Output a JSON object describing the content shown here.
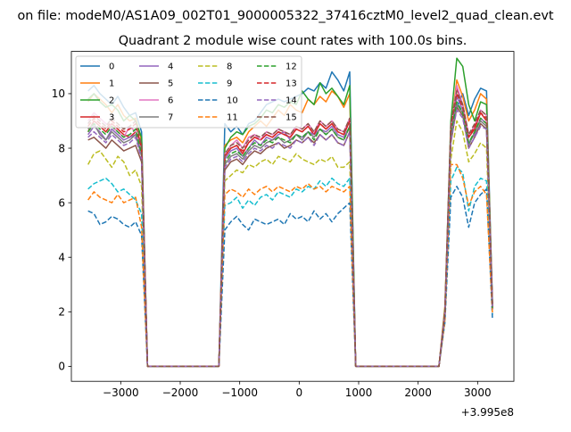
{
  "suptitle": "on file: modeM0/AS1A09_002T01_9000005322_37416cztM0_level2_quad_clean.evt",
  "chart_data": {
    "type": "line",
    "title": "Quadrant 2 module wise count rates with 100.0s bins.",
    "xlabel": "",
    "ylabel": "",
    "x_offset_label": "+3.995e8",
    "xlim": [
      -3830,
      3610
    ],
    "ylim": [
      -0.55,
      11.55
    ],
    "xticks": [
      -3000,
      -2000,
      -1000,
      0,
      1000,
      2000,
      3000
    ],
    "xtick_labels": [
      "−3000",
      "−2000",
      "−1000",
      "0",
      "1000",
      "2000",
      "3000"
    ],
    "yticks": [
      0,
      2,
      4,
      6,
      8,
      10
    ],
    "ytick_labels": [
      "0",
      "2",
      "4",
      "6",
      "8",
      "10"
    ],
    "grid": false,
    "legend_position": "top-left",
    "legend_columns": 4,
    "x": [
      -3550,
      -3450,
      -3350,
      -3250,
      -3150,
      -3050,
      -2950,
      -2850,
      -2750,
      -2650,
      -2550,
      -2450,
      -2350,
      -2250,
      -2150,
      -2050,
      -1950,
      -1850,
      -1750,
      -1650,
      -1550,
      -1450,
      -1350,
      -1250,
      -1150,
      -1050,
      -950,
      -850,
      -750,
      -650,
      -550,
      -450,
      -350,
      -250,
      -150,
      -50,
      50,
      150,
      250,
      350,
      450,
      550,
      650,
      750,
      850,
      950,
      1050,
      1150,
      1250,
      1350,
      1450,
      1550,
      1650,
      1750,
      1850,
      1950,
      2050,
      2150,
      2250,
      2350,
      2450,
      2550,
      2650,
      2750,
      2850,
      2950,
      3050,
      3150,
      3250
    ],
    "series": [
      {
        "name": "0",
        "color": "#1f77b4",
        "dash": "solid",
        "values": [
          10.1,
          10.3,
          10.0,
          9.8,
          9.6,
          9.9,
          9.5,
          9.2,
          9.3,
          8.6,
          0,
          0,
          0,
          0,
          0,
          0,
          0,
          0,
          0,
          0,
          0,
          0,
          0,
          8.9,
          8.6,
          8.8,
          8.5,
          8.9,
          9.0,
          9.3,
          9.6,
          9.7,
          9.8,
          9.7,
          9.8,
          9.9,
          10.0,
          10.2,
          10.1,
          10.4,
          10.2,
          10.8,
          10.5,
          10.1,
          10.8,
          0,
          0,
          0,
          0,
          0,
          0,
          0,
          0,
          0,
          0,
          0,
          0,
          0,
          0,
          0,
          2.0,
          8.5,
          9.5,
          10.0,
          9.2,
          9.8,
          10.2,
          10.1,
          2.3
        ]
      },
      {
        "name": "1",
        "color": "#ff7f0e",
        "dash": "solid",
        "values": [
          9.7,
          10.0,
          9.8,
          9.6,
          9.3,
          9.6,
          9.2,
          9.0,
          9.1,
          8.3,
          0,
          0,
          0,
          0,
          0,
          0,
          0,
          0,
          0,
          0,
          0,
          0,
          0,
          8.1,
          8.3,
          8.4,
          8.2,
          8.6,
          8.8,
          9.0,
          8.8,
          9.1,
          9.4,
          9.2,
          9.6,
          9.4,
          9.3,
          9.8,
          9.6,
          9.9,
          9.7,
          10.1,
          9.9,
          9.5,
          10.0,
          0,
          0,
          0,
          0,
          0,
          0,
          0,
          0,
          0,
          0,
          0,
          0,
          0,
          0,
          0,
          2.2,
          8.7,
          10.5,
          9.9,
          9.0,
          9.4,
          10.0,
          9.8,
          2.2
        ]
      },
      {
        "name": "2",
        "color": "#2ca02c",
        "dash": "solid",
        "values": [
          9.8,
          10.0,
          9.7,
          9.5,
          9.6,
          9.4,
          9.0,
          9.2,
          9.0,
          8.4,
          0,
          0,
          0,
          0,
          0,
          0,
          0,
          0,
          0,
          0,
          0,
          0,
          0,
          8.0,
          8.4,
          8.6,
          8.5,
          8.8,
          8.9,
          9.1,
          9.4,
          9.3,
          9.6,
          9.5,
          9.7,
          9.6,
          10.1,
          9.8,
          9.6,
          10.4,
          10.0,
          10.2,
          9.9,
          9.6,
          10.3,
          0,
          0,
          0,
          0,
          0,
          0,
          0,
          0,
          0,
          0,
          0,
          0,
          0,
          0,
          0,
          2.1,
          9.0,
          11.3,
          11.0,
          9.6,
          9.0,
          9.7,
          9.6,
          2.3
        ]
      },
      {
        "name": "3",
        "color": "#d62728",
        "dash": "solid",
        "values": [
          8.6,
          9.0,
          8.8,
          8.6,
          8.9,
          8.7,
          8.5,
          8.4,
          8.6,
          8.1,
          0,
          0,
          0,
          0,
          0,
          0,
          0,
          0,
          0,
          0,
          0,
          0,
          0,
          7.7,
          8.0,
          8.1,
          7.8,
          8.2,
          8.4,
          8.3,
          8.5,
          8.4,
          8.6,
          8.5,
          8.4,
          8.7,
          8.6,
          8.8,
          8.5,
          8.9,
          8.7,
          8.9,
          8.6,
          8.5,
          9.0,
          0,
          0,
          0,
          0,
          0,
          0,
          0,
          0,
          0,
          0,
          0,
          0,
          0,
          0,
          0,
          1.9,
          8.6,
          10.2,
          9.6,
          8.4,
          8.7,
          9.3,
          9.0,
          2.1
        ]
      },
      {
        "name": "4",
        "color": "#9467bd",
        "dash": "solid",
        "values": [
          8.5,
          8.8,
          8.6,
          8.3,
          8.7,
          8.5,
          8.3,
          8.4,
          8.5,
          7.9,
          0,
          0,
          0,
          0,
          0,
          0,
          0,
          0,
          0,
          0,
          0,
          0,
          0,
          7.6,
          7.9,
          8.0,
          7.7,
          8.0,
          8.3,
          8.1,
          8.4,
          8.3,
          8.5,
          8.6,
          8.3,
          8.5,
          8.4,
          8.6,
          8.5,
          8.7,
          8.6,
          8.8,
          8.5,
          8.4,
          8.8,
          0,
          0,
          0,
          0,
          0,
          0,
          0,
          0,
          0,
          0,
          0,
          0,
          0,
          0,
          0,
          1.9,
          8.3,
          9.9,
          9.4,
          8.2,
          8.5,
          9.1,
          8.9,
          2.2
        ]
      },
      {
        "name": "5",
        "color": "#8c564b",
        "dash": "solid",
        "values": [
          8.3,
          8.4,
          8.2,
          8.0,
          8.3,
          8.1,
          7.9,
          8.0,
          8.1,
          7.5,
          0,
          0,
          0,
          0,
          0,
          0,
          0,
          0,
          0,
          0,
          0,
          0,
          0,
          7.2,
          7.5,
          7.6,
          7.4,
          7.7,
          7.9,
          7.8,
          8.0,
          8.1,
          8.2,
          8.0,
          8.1,
          8.3,
          8.2,
          8.4,
          8.2,
          8.5,
          8.3,
          8.5,
          8.2,
          8.1,
          8.6,
          0,
          0,
          0,
          0,
          0,
          0,
          0,
          0,
          0,
          0,
          0,
          0,
          0,
          0,
          0,
          1.8,
          8.2,
          9.5,
          9.2,
          8.0,
          8.4,
          8.9,
          8.7,
          2.1
        ]
      },
      {
        "name": "6",
        "color": "#e377c2",
        "dash": "solid",
        "values": [
          9.0,
          9.3,
          9.1,
          8.9,
          8.8,
          8.6,
          8.4,
          8.8,
          8.6,
          8.0,
          0,
          0,
          0,
          0,
          0,
          0,
          0,
          0,
          0,
          0,
          0,
          0,
          0,
          7.8,
          8.1,
          8.3,
          8.0,
          8.4,
          8.5,
          8.3,
          8.6,
          8.5,
          8.7,
          8.6,
          8.5,
          8.8,
          8.7,
          8.9,
          8.6,
          9.0,
          8.8,
          9.0,
          8.7,
          8.6,
          9.1,
          0,
          0,
          0,
          0,
          0,
          0,
          0,
          0,
          0,
          0,
          0,
          0,
          0,
          0,
          0,
          2.0,
          8.7,
          10.3,
          9.6,
          8.5,
          8.8,
          9.4,
          9.2,
          2.2
        ]
      },
      {
        "name": "7",
        "color": "#7f7f7f",
        "dash": "solid",
        "values": [
          8.7,
          8.9,
          8.5,
          8.3,
          8.6,
          8.4,
          8.2,
          8.3,
          8.5,
          7.7,
          0,
          0,
          0,
          0,
          0,
          0,
          0,
          0,
          0,
          0,
          0,
          0,
          0,
          7.4,
          7.7,
          7.8,
          7.6,
          7.9,
          8.1,
          8.0,
          8.2,
          8.3,
          8.4,
          8.2,
          8.3,
          8.5,
          8.3,
          8.6,
          8.4,
          8.7,
          8.5,
          8.7,
          8.4,
          8.3,
          8.8,
          0,
          0,
          0,
          0,
          0,
          0,
          0,
          0,
          0,
          0,
          0,
          0,
          0,
          0,
          0,
          1.9,
          8.4,
          9.6,
          9.3,
          8.1,
          8.6,
          9.0,
          8.8,
          2.1
        ]
      },
      {
        "name": "8",
        "color": "#bcbd22",
        "dash": "dashed",
        "values": [
          7.4,
          7.8,
          7.9,
          7.6,
          7.3,
          7.7,
          7.5,
          7.0,
          7.2,
          6.6,
          0,
          0,
          0,
          0,
          0,
          0,
          0,
          0,
          0,
          0,
          0,
          0,
          0,
          6.8,
          7.0,
          7.2,
          7.1,
          7.4,
          7.3,
          7.5,
          7.6,
          7.4,
          7.7,
          7.6,
          7.5,
          7.8,
          7.6,
          7.5,
          7.4,
          7.6,
          7.5,
          7.7,
          7.3,
          7.3,
          7.5,
          0,
          0,
          0,
          0,
          0,
          0,
          0,
          0,
          0,
          0,
          0,
          0,
          0,
          0,
          0,
          1.8,
          7.6,
          9.0,
          8.6,
          7.5,
          7.8,
          8.2,
          8.0,
          2.0
        ]
      },
      {
        "name": "9",
        "color": "#17becf",
        "dash": "dashed",
        "values": [
          6.5,
          6.7,
          6.8,
          6.9,
          6.7,
          6.4,
          6.5,
          6.3,
          6.1,
          5.6,
          0,
          0,
          0,
          0,
          0,
          0,
          0,
          0,
          0,
          0,
          0,
          0,
          0,
          5.9,
          6.0,
          6.2,
          5.8,
          6.1,
          5.9,
          6.2,
          6.3,
          6.1,
          6.4,
          6.3,
          6.2,
          6.5,
          6.4,
          6.6,
          6.5,
          6.8,
          6.6,
          6.9,
          6.7,
          6.6,
          6.9,
          0,
          0,
          0,
          0,
          0,
          0,
          0,
          0,
          0,
          0,
          0,
          0,
          0,
          0,
          0,
          1.7,
          6.8,
          7.3,
          7.1,
          5.7,
          6.6,
          6.9,
          6.8,
          1.9
        ]
      },
      {
        "name": "10",
        "color": "#1f77b4",
        "dash": "dashed",
        "values": [
          5.7,
          5.6,
          5.2,
          5.3,
          5.5,
          5.4,
          5.2,
          5.1,
          5.3,
          4.8,
          0,
          0,
          0,
          0,
          0,
          0,
          0,
          0,
          0,
          0,
          0,
          0,
          0,
          5.0,
          5.3,
          5.5,
          5.2,
          5.0,
          5.4,
          5.3,
          5.2,
          5.3,
          5.4,
          5.2,
          5.6,
          5.4,
          5.5,
          5.3,
          5.7,
          5.4,
          5.6,
          5.3,
          5.6,
          5.8,
          6.0,
          0,
          0,
          0,
          0,
          0,
          0,
          0,
          0,
          0,
          0,
          0,
          0,
          0,
          0,
          0,
          1.6,
          6.2,
          6.6,
          6.2,
          5.1,
          6.0,
          6.3,
          6.5,
          1.7
        ]
      },
      {
        "name": "11",
        "color": "#ff7f0e",
        "dash": "dashed",
        "values": [
          6.1,
          6.4,
          6.2,
          6.1,
          6.0,
          6.3,
          6.0,
          6.1,
          6.2,
          5.1,
          0,
          0,
          0,
          0,
          0,
          0,
          0,
          0,
          0,
          0,
          0,
          0,
          0,
          6.3,
          6.5,
          6.4,
          6.2,
          6.5,
          6.3,
          6.5,
          6.6,
          6.4,
          6.6,
          6.5,
          6.4,
          6.6,
          6.5,
          6.7,
          6.5,
          6.6,
          6.4,
          6.6,
          6.5,
          6.4,
          6.6,
          0,
          0,
          0,
          0,
          0,
          0,
          0,
          0,
          0,
          0,
          0,
          0,
          0,
          0,
          0,
          1.7,
          7.4,
          7.4,
          6.9,
          5.9,
          6.4,
          6.6,
          6.3,
          1.9
        ]
      },
      {
        "name": "12",
        "color": "#2ca02c",
        "dash": "dashed",
        "values": [
          8.6,
          8.9,
          8.7,
          8.5,
          8.8,
          8.6,
          8.4,
          8.5,
          8.7,
          7.8,
          0,
          0,
          0,
          0,
          0,
          0,
          0,
          0,
          0,
          0,
          0,
          0,
          0,
          7.5,
          7.8,
          7.9,
          7.7,
          8.0,
          8.2,
          8.1,
          8.3,
          8.2,
          8.4,
          8.3,
          8.2,
          8.5,
          8.4,
          8.6,
          8.3,
          8.7,
          8.5,
          8.7,
          8.4,
          8.3,
          8.8,
          0,
          0,
          0,
          0,
          0,
          0,
          0,
          0,
          0,
          0,
          0,
          0,
          0,
          0,
          0,
          1.9,
          8.5,
          9.7,
          9.3,
          8.2,
          8.6,
          9.1,
          8.9,
          2.1
        ]
      },
      {
        "name": "13",
        "color": "#d62728",
        "dash": "dashed",
        "values": [
          8.8,
          9.1,
          8.9,
          8.7,
          9.0,
          8.8,
          8.6,
          8.7,
          8.9,
          8.0,
          0,
          0,
          0,
          0,
          0,
          0,
          0,
          0,
          0,
          0,
          0,
          0,
          0,
          7.7,
          8.0,
          8.1,
          7.9,
          8.2,
          8.4,
          8.3,
          8.5,
          8.4,
          8.6,
          8.5,
          8.4,
          8.7,
          8.6,
          8.8,
          8.5,
          8.9,
          8.7,
          8.9,
          8.6,
          8.5,
          9.0,
          0,
          0,
          0,
          0,
          0,
          0,
          0,
          0,
          0,
          0,
          0,
          0,
          0,
          0,
          0,
          2.0,
          8.8,
          10.0,
          9.5,
          8.4,
          8.8,
          9.3,
          9.1,
          2.2
        ]
      },
      {
        "name": "14",
        "color": "#9467bd",
        "dash": "dashed",
        "values": [
          8.4,
          8.6,
          8.4,
          8.2,
          8.5,
          8.3,
          8.1,
          8.2,
          8.4,
          7.6,
          0,
          0,
          0,
          0,
          0,
          0,
          0,
          0,
          0,
          0,
          0,
          0,
          0,
          7.3,
          7.6,
          7.7,
          7.5,
          7.8,
          8.0,
          7.9,
          8.1,
          8.0,
          8.2,
          8.1,
          8.0,
          8.3,
          8.2,
          8.4,
          8.1,
          8.5,
          8.3,
          8.5,
          8.2,
          8.1,
          8.6,
          0,
          0,
          0,
          0,
          0,
          0,
          0,
          0,
          0,
          0,
          0,
          0,
          0,
          0,
          0,
          1.9,
          8.3,
          9.4,
          9.1,
          8.0,
          8.4,
          8.8,
          8.7,
          2.1
        ]
      },
      {
        "name": "15",
        "color": "#8c564b",
        "dash": "dashed",
        "values": [
          8.9,
          9.2,
          9.0,
          8.8,
          9.1,
          8.9,
          8.7,
          8.8,
          9.0,
          8.1,
          0,
          0,
          0,
          0,
          0,
          0,
          0,
          0,
          0,
          0,
          0,
          0,
          0,
          7.8,
          8.1,
          8.2,
          8.0,
          8.3,
          8.5,
          8.4,
          8.6,
          8.5,
          8.7,
          8.6,
          8.5,
          8.8,
          8.7,
          8.9,
          8.6,
          9.0,
          8.8,
          9.0,
          8.7,
          8.6,
          9.1,
          0,
          0,
          0,
          0,
          0,
          0,
          0,
          0,
          0,
          0,
          0,
          0,
          0,
          0,
          0,
          2.0,
          8.9,
          10.1,
          9.6,
          8.5,
          8.9,
          9.4,
          9.2,
          2.2
        ]
      }
    ]
  }
}
